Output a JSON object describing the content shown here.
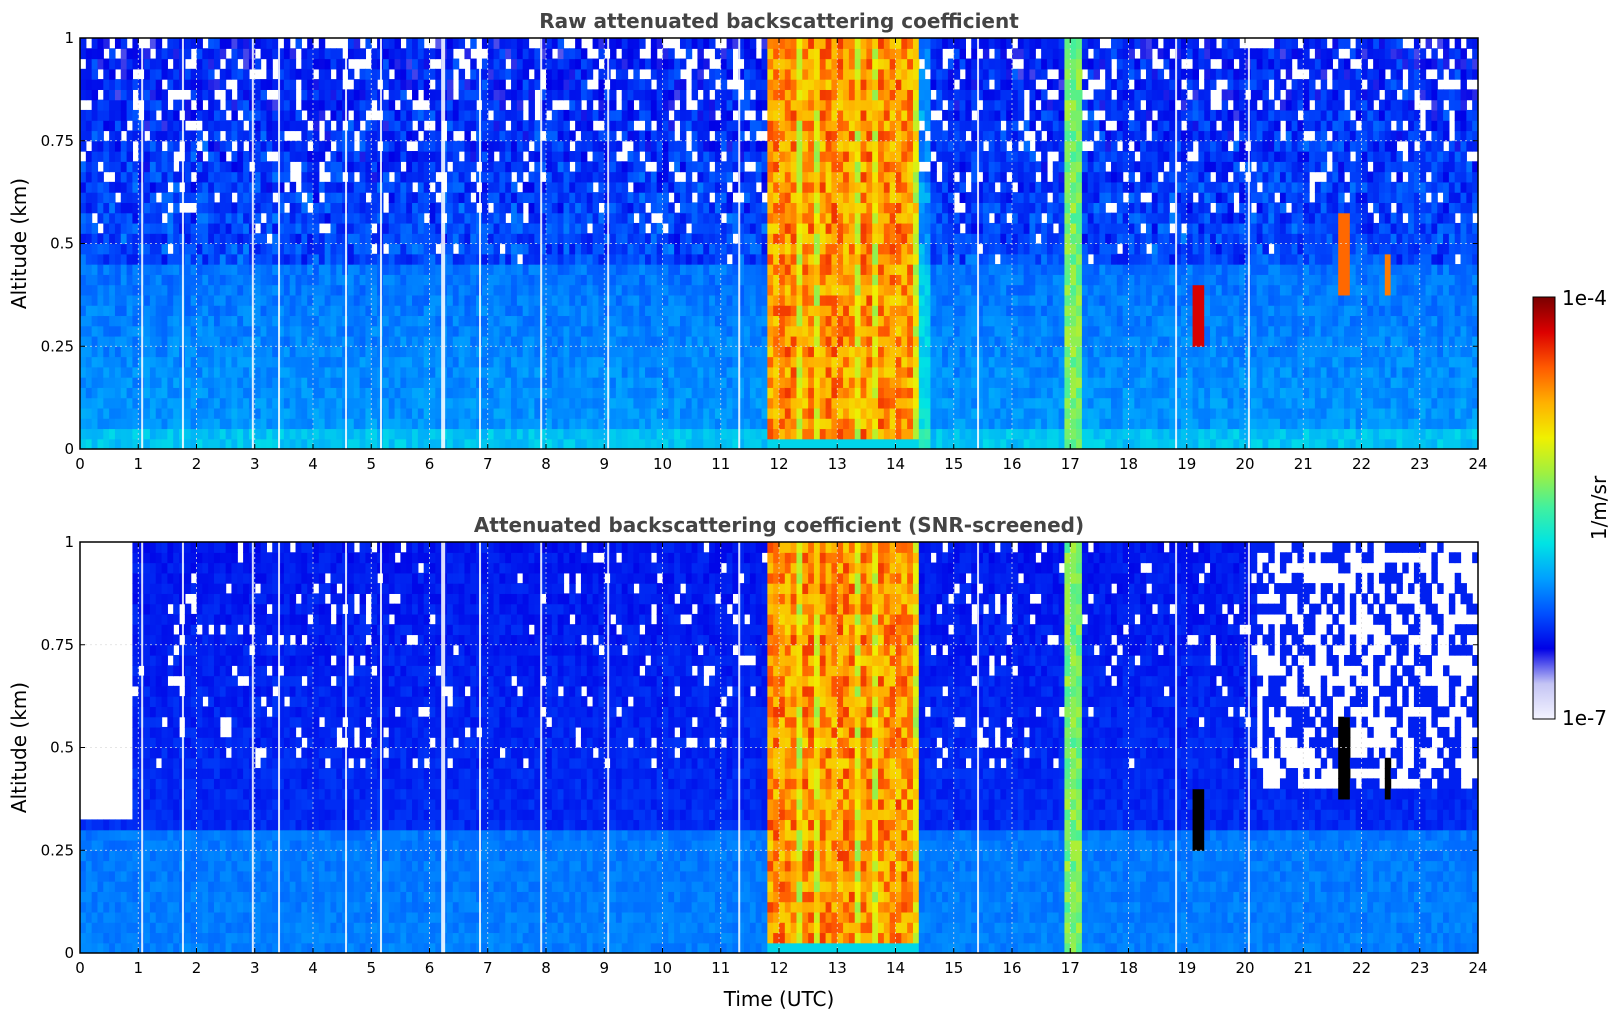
{
  "chart_data": [
    {
      "type": "heatmap",
      "title": "Raw attenuated backscattering coefficient",
      "xlabel": "",
      "ylabel": "Altitude (km)",
      "xlim": [
        0,
        24
      ],
      "ylim": [
        0,
        1
      ],
      "xticks": [
        "0",
        "1",
        "2",
        "3",
        "4",
        "5",
        "6",
        "7",
        "8",
        "9",
        "10",
        "11",
        "12",
        "13",
        "14",
        "15",
        "16",
        "17",
        "18",
        "19",
        "20",
        "21",
        "22",
        "23",
        "24"
      ],
      "yticks": [
        "0",
        "0.25",
        "0.5",
        "0.75",
        "1"
      ],
      "grid": true,
      "screened": false,
      "features": [
        {
          "kind": "fog-layer",
          "x_range": [
            11.85,
            14.35
          ],
          "y_range": [
            0.03,
            1.0
          ],
          "level": "high (orange/red)"
        },
        {
          "kind": "elevated-band",
          "x_range": [
            16.85,
            17.2
          ],
          "y_range": [
            0,
            1.0
          ],
          "level": "medium (green)"
        },
        {
          "kind": "cloud",
          "x_range": [
            19.1,
            19.35
          ],
          "y_range": [
            0.25,
            0.4
          ],
          "level": "1e-4"
        },
        {
          "kind": "cloud",
          "x_range": [
            21.6,
            21.85
          ],
          "y_range": [
            0.38,
            0.58
          ],
          "level": "high"
        },
        {
          "kind": "cloud",
          "x_range": [
            22.35,
            22.5
          ],
          "y_range": [
            0.38,
            0.48
          ],
          "level": "high"
        }
      ]
    },
    {
      "type": "heatmap",
      "title": "Attenuated backscattering coefficient (SNR-screened)",
      "xlabel": "Time (UTC)",
      "ylabel": "Altitude (km)",
      "xlim": [
        0,
        24
      ],
      "ylim": [
        0,
        1
      ],
      "xticks": [
        "0",
        "1",
        "2",
        "3",
        "4",
        "5",
        "6",
        "7",
        "8",
        "9",
        "10",
        "11",
        "12",
        "13",
        "14",
        "15",
        "16",
        "17",
        "18",
        "19",
        "20",
        "21",
        "22",
        "23",
        "24"
      ],
      "yticks": [
        "0",
        "0.25",
        "0.5",
        "0.75",
        "1"
      ],
      "grid": true,
      "screened": true,
      "features": [
        {
          "kind": "fog-layer",
          "x_range": [
            11.85,
            14.35
          ],
          "y_range": [
            0.03,
            1.0
          ],
          "level": "high (orange/red)"
        },
        {
          "kind": "elevated-band",
          "x_range": [
            16.85,
            17.2
          ],
          "y_range": [
            0,
            1.0
          ],
          "level": "medium (green)"
        },
        {
          "kind": "cloud",
          "x_range": [
            19.1,
            19.3
          ],
          "y_range": [
            0.25,
            0.4
          ],
          "level": "saturated"
        },
        {
          "kind": "cloud",
          "x_range": [
            21.6,
            21.85
          ],
          "y_range": [
            0.42,
            0.55
          ],
          "level": "saturated"
        },
        {
          "kind": "cloud",
          "x_range": [
            22.35,
            22.5
          ],
          "y_range": [
            0.38,
            0.46
          ],
          "level": "saturated"
        },
        {
          "kind": "screened-region",
          "x_range": [
            0,
            0.9
          ],
          "y_range": [
            0.33,
            1.0
          ]
        },
        {
          "kind": "screened-region",
          "x_range": [
            20.2,
            24
          ],
          "y_range": [
            0.4,
            1.0
          ]
        }
      ]
    }
  ],
  "colorbar": {
    "label": "1/m/sr",
    "max_label": "1e-4",
    "min_label": "1e-7",
    "scale": "log",
    "range": [
      1e-07,
      0.0001
    ],
    "colormap": [
      "#f4f4ff",
      "#c4c4f4",
      "#0000e6",
      "#0050ff",
      "#00a0ff",
      "#00e4e4",
      "#40f0a0",
      "#a0f040",
      "#f0f000",
      "#ffb000",
      "#ff5a00",
      "#dc0000",
      "#7a0000"
    ]
  }
}
